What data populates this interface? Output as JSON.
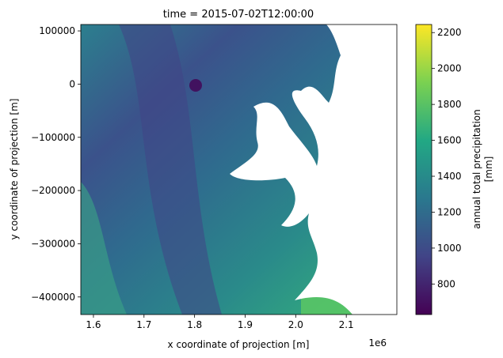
{
  "chart_data": {
    "type": "raster",
    "title": "time = 2015-07-02T12:00:00",
    "x_label": "x coordinate of projection [m]",
    "y_label": "y coordinate of projection [m]",
    "x_offset_label": "1e6",
    "xlim": [
      1575000,
      2200000
    ],
    "xticks": [
      {
        "value": 1600000,
        "label": "1.6"
      },
      {
        "value": 1700000,
        "label": "1.7"
      },
      {
        "value": 1800000,
        "label": "1.8"
      },
      {
        "value": 1900000,
        "label": "1.9"
      },
      {
        "value": 2000000,
        "label": "2.0"
      },
      {
        "value": 2100000,
        "label": "2.1"
      }
    ],
    "ylim": [
      -433000,
      112000
    ],
    "yticks": [
      {
        "value": -400000,
        "label": "−400000"
      },
      {
        "value": -300000,
        "label": "−300000"
      },
      {
        "value": -200000,
        "label": "−200000"
      },
      {
        "value": -100000,
        "label": "−100000"
      },
      0,
      100000
    ],
    "colorbar": {
      "label": [
        "annual total precipitation",
        "[mm]"
      ],
      "clim": [
        630,
        2245
      ],
      "ticks": [
        800,
        1000,
        1200,
        1400,
        1600,
        1800,
        2000,
        2200
      ],
      "colormap": [
        "#440154",
        "#414487",
        "#2a788e",
        "#22a884",
        "#7ad151",
        "#fde725"
      ]
    }
  }
}
